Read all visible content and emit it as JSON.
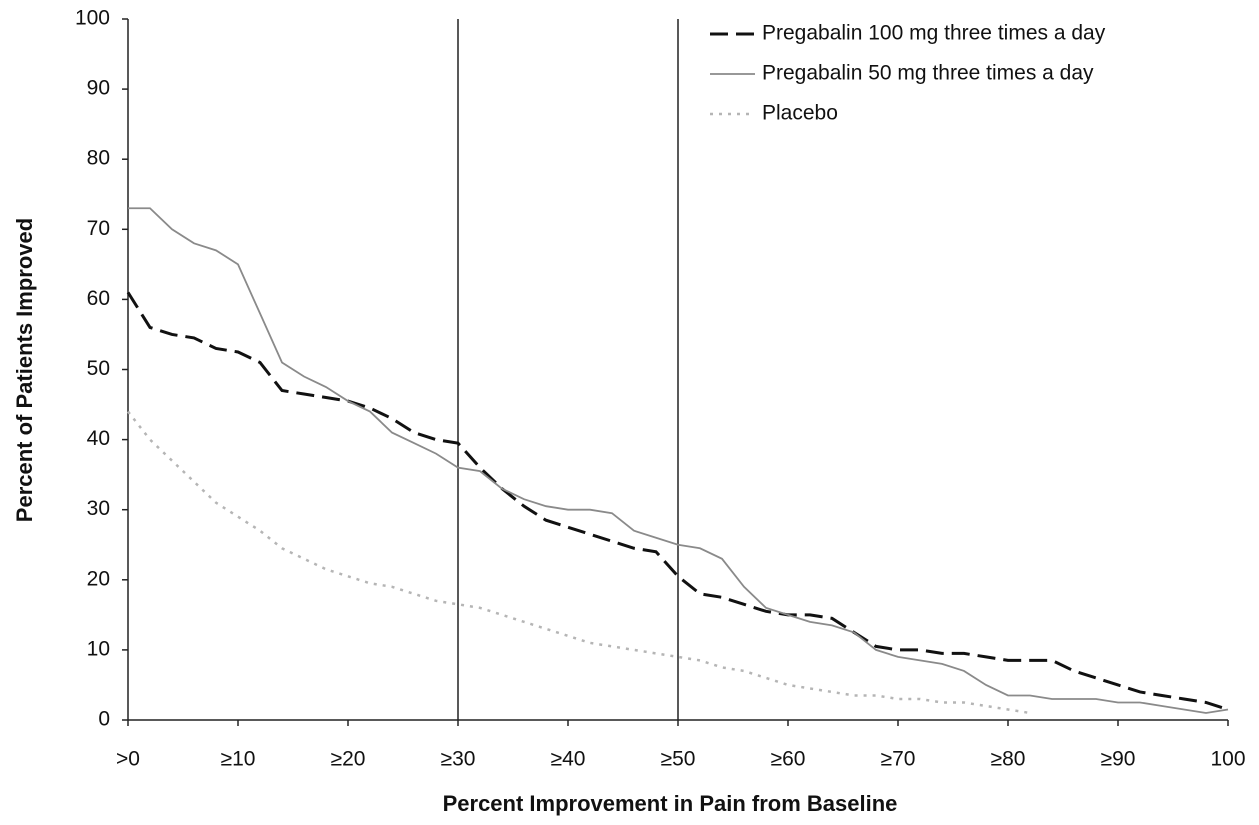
{
  "chart_data": {
    "type": "line",
    "y_label": "Percent of Patients Improved",
    "x_label": "Percent Improvement in Pain from Baseline",
    "xlim": [
      0,
      100
    ],
    "ylim": [
      0,
      100
    ],
    "xticks": [
      {
        "value": 0,
        "label": ">0"
      },
      {
        "value": 10,
        "label": "≥10"
      },
      {
        "value": 20,
        "label": "≥20"
      },
      {
        "value": 30,
        "label": "≥30"
      },
      {
        "value": 40,
        "label": "≥40"
      },
      {
        "value": 50,
        "label": "≥50"
      },
      {
        "value": 60,
        "label": "≥60"
      },
      {
        "value": 70,
        "label": "≥70"
      },
      {
        "value": 80,
        "label": "≥80"
      },
      {
        "value": 90,
        "label": "≥90"
      },
      100
    ],
    "yticks": [
      0,
      10,
      20,
      30,
      40,
      50,
      60,
      70,
      80,
      90,
      100
    ],
    "reference_lines": [
      30,
      50
    ],
    "legend": "top-right",
    "x": [
      0,
      2,
      4,
      6,
      8,
      10,
      12,
      14,
      16,
      18,
      20,
      22,
      24,
      26,
      28,
      30,
      32,
      34,
      36,
      38,
      40,
      42,
      44,
      46,
      48,
      50,
      52,
      54,
      56,
      58,
      60,
      62,
      64,
      66,
      68,
      70,
      72,
      74,
      76,
      78,
      80,
      82,
      84,
      86,
      88,
      90,
      92,
      94,
      96,
      98,
      100
    ],
    "series": [
      {
        "name": "Pregabalin 100 mg three times a day",
        "color": "#111111",
        "dash": "dashed",
        "values": [
          61,
          56,
          55,
          54.5,
          53,
          52.5,
          51,
          47,
          46.5,
          46,
          45.5,
          44.5,
          43,
          41,
          40,
          39.5,
          36,
          33,
          30.5,
          28.5,
          27.5,
          26.5,
          25.5,
          24.5,
          24,
          20.5,
          18,
          17.5,
          16.5,
          15.5,
          15,
          15,
          14.5,
          12.5,
          10.5,
          10,
          10,
          9.5,
          9.5,
          9,
          8.5,
          8.5,
          8.5,
          7,
          6,
          5,
          4,
          3.5,
          3,
          2.5,
          1.5
        ]
      },
      {
        "name": "Pregabalin 50 mg three times a day",
        "color": "#8a8a8a",
        "dash": "solid",
        "values": [
          73,
          73,
          70,
          68,
          67,
          65,
          58,
          51,
          49,
          47.5,
          45.5,
          44,
          41,
          39.5,
          38,
          36,
          35.5,
          33,
          31.5,
          30.5,
          30,
          30,
          29.5,
          27,
          26,
          25,
          24.5,
          23,
          19,
          16,
          15,
          14,
          13.5,
          12.5,
          10,
          9,
          8.5,
          8,
          7,
          5,
          3.5,
          3.5,
          3,
          3,
          3,
          2.5,
          2.5,
          2,
          1.5,
          1,
          1.5
        ]
      },
      {
        "name": "Placebo",
        "color": "#b5b5b5",
        "dash": "dotted",
        "values": [
          44,
          40,
          37,
          34,
          31,
          29,
          27,
          24.5,
          23,
          21.5,
          20.5,
          19.5,
          19,
          18,
          17,
          16.5,
          16,
          15,
          14,
          13,
          12,
          11,
          10.5,
          10,
          9.5,
          9,
          8.5,
          7.5,
          7,
          6,
          5,
          4.5,
          4,
          3.5,
          3.5,
          3,
          3,
          2.5,
          2.5,
          2,
          1.5,
          1,
          null,
          null,
          null,
          null,
          null,
          null,
          null,
          null,
          null
        ]
      }
    ]
  }
}
